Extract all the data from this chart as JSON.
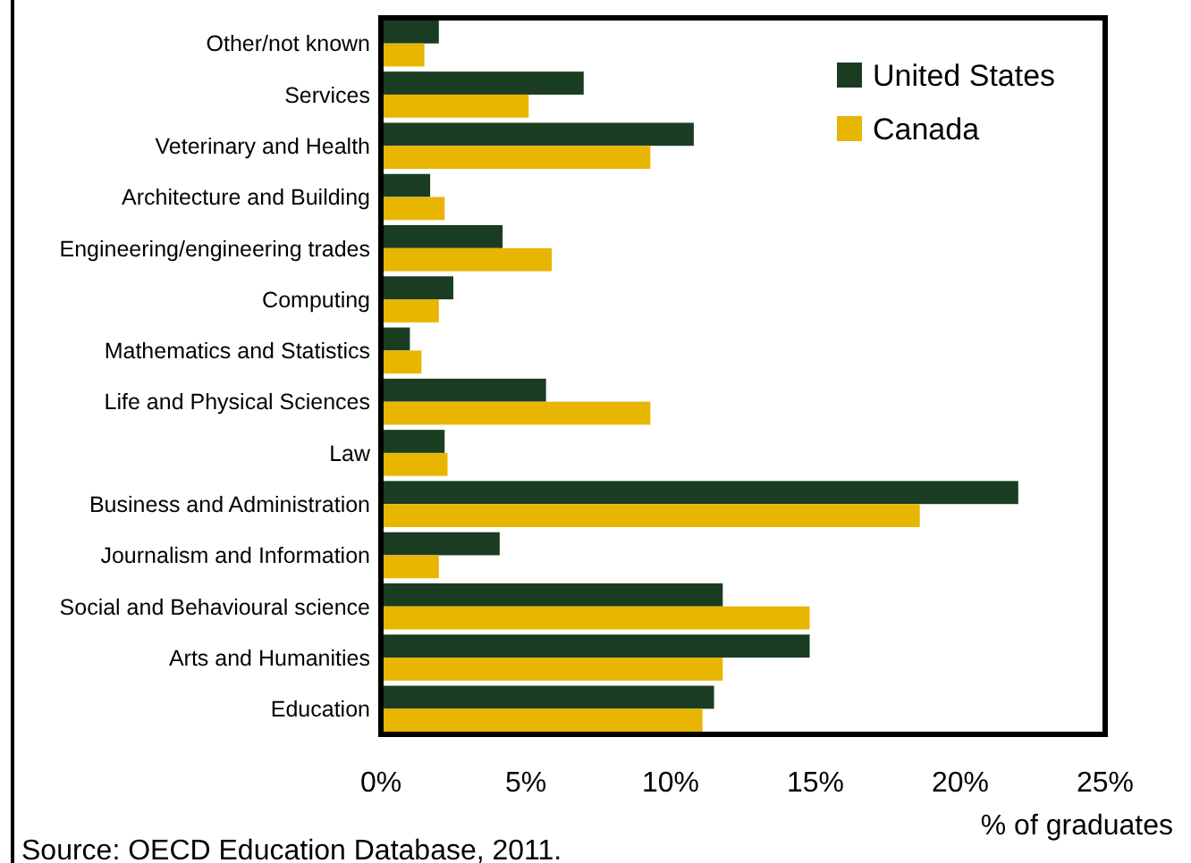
{
  "chart_data": {
    "type": "bar",
    "orientation": "horizontal",
    "xlabel": "% of graduates",
    "annotations": [
      "Source: OECD Education Database, 2011."
    ],
    "categories": [
      "Other/not known",
      "Services",
      "Veterinary and Health",
      "Architecture and Building",
      "Engineering/engineering trades",
      "Computing",
      "Mathematics and Statistics",
      "Life and Physical Sciences",
      "Law",
      "Business and Administration",
      "Journalism and Information",
      "Social and Behavioural science",
      "Arts and Humanities",
      "Education"
    ],
    "series": [
      {
        "name": "United States",
        "color": "#1a3d22",
        "values": [
          2.0,
          7.0,
          10.8,
          1.7,
          4.2,
          2.5,
          1.0,
          5.7,
          2.2,
          22.0,
          4.1,
          11.8,
          14.8,
          11.5
        ]
      },
      {
        "name": "Canada",
        "color": "#e8b500",
        "values": [
          1.5,
          5.1,
          9.3,
          2.2,
          5.9,
          2.0,
          1.4,
          9.3,
          2.3,
          18.6,
          2.0,
          14.8,
          11.8,
          11.1
        ]
      }
    ],
    "xlim": [
      0,
      25
    ],
    "xticks": [
      {
        "value": 0,
        "label": "0%"
      },
      {
        "value": 5,
        "label": "5%"
      },
      {
        "value": 10,
        "label": "10%"
      },
      {
        "value": 15,
        "label": "15%"
      },
      {
        "value": 20,
        "label": "20%"
      },
      {
        "value": 25,
        "label": "25%"
      }
    ],
    "grid": false,
    "legend": "top right"
  }
}
